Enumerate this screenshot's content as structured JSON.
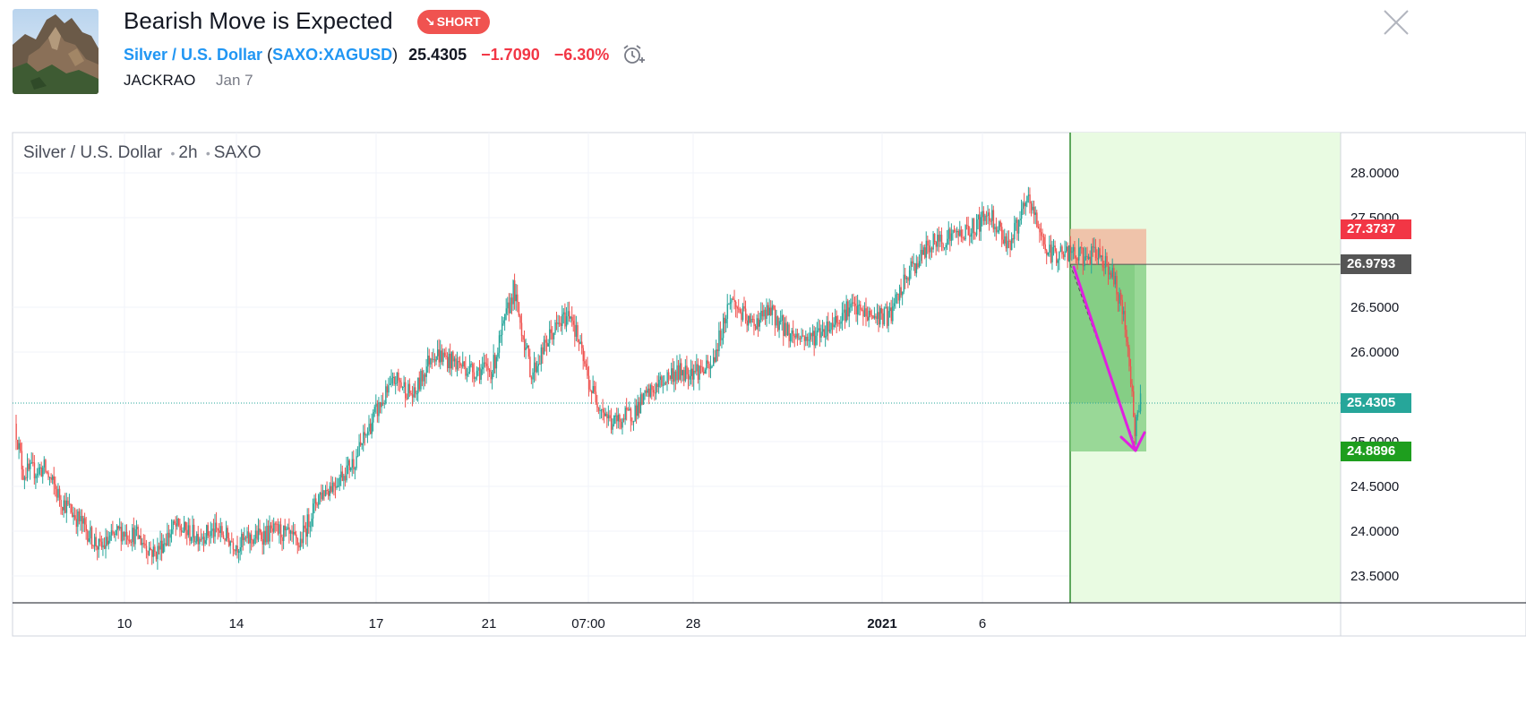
{
  "idea": {
    "title": "Bearish Move is Expected",
    "badge": "SHORT",
    "symbol_name": "Silver / U.S. Dollar",
    "symbol_code": "SAXO:XAGUSD",
    "price": "25.4305",
    "change": "−1.7090",
    "change_pct": "−6.30%",
    "author": "JACKRAO",
    "date": "Jan 7"
  },
  "colors": {
    "up": "#26a69a",
    "down": "#ef5350",
    "target_zone": "#7dcc7d",
    "stop_zone": "#f0b8a0",
    "right_panel": "#e9fbe2",
    "arrow": "#e020e0",
    "badge": "#f05350",
    "link": "#2196f3"
  },
  "chart_legend": {
    "symbol": "Silver / U.S. Dollar",
    "interval": "2h",
    "exchange": "SAXO"
  },
  "chart_data": {
    "type": "candlestick",
    "y_ticks": [
      "28.0000",
      "27.5000",
      "26.5000",
      "26.0000",
      "25.0000",
      "24.5000",
      "24.0000",
      "23.5000"
    ],
    "y_tick_values": [
      28.0,
      27.5,
      26.5,
      26.0,
      25.0,
      24.5,
      24.0,
      23.5
    ],
    "ylim": [
      23.2,
      28.45
    ],
    "x_ticks": [
      {
        "label": "10",
        "bold": false
      },
      {
        "label": "14",
        "bold": false
      },
      {
        "label": "17",
        "bold": false
      },
      {
        "label": "21",
        "bold": false
      },
      {
        "label": "07:00",
        "bold": false
      },
      {
        "label": "28",
        "bold": false
      },
      {
        "label": "2021",
        "bold": true
      },
      {
        "label": "6",
        "bold": false
      }
    ],
    "price_labels": [
      {
        "text": "27.3737",
        "value": 27.3737,
        "color": "#f23645"
      },
      {
        "text": "26.9793",
        "value": 26.9793,
        "color": "#555555"
      },
      {
        "text": "25.4305",
        "value": 25.4305,
        "color": "#26a69a"
      },
      {
        "text": "24.8896",
        "value": 24.8896,
        "color": "#1e9e1e"
      }
    ],
    "position": {
      "side": "short",
      "entry": 26.9793,
      "stop": 27.3737,
      "target": 24.8896
    },
    "current_price": 25.4305,
    "path": [
      {
        "v": 25.2
      },
      {
        "v": 24.65
      },
      {
        "v": 24.7
      },
      {
        "v": 24.35
      },
      {
        "v": 24.1
      },
      {
        "v": 23.8
      },
      {
        "v": 24.0
      },
      {
        "v": 23.95
      },
      {
        "v": 23.75
      },
      {
        "v": 24.05
      },
      {
        "v": 23.95
      },
      {
        "v": 24.0
      },
      {
        "v": 23.85
      },
      {
        "v": 23.95
      },
      {
        "v": 24.0
      },
      {
        "v": 23.85
      },
      {
        "v": 24.4
      },
      {
        "v": 24.55
      },
      {
        "v": 24.8
      },
      {
        "v": 25.3
      },
      {
        "v": 25.7
      },
      {
        "v": 25.5
      },
      {
        "v": 26.0
      },
      {
        "v": 25.9
      },
      {
        "v": 25.8
      },
      {
        "v": 25.8
      },
      {
        "v": 26.7
      },
      {
        "v": 25.75
      },
      {
        "v": 26.2
      },
      {
        "v": 26.45
      },
      {
        "v": 25.6
      },
      {
        "v": 25.2
      },
      {
        "v": 25.3
      },
      {
        "v": 25.55
      },
      {
        "v": 25.75
      },
      {
        "v": 25.8
      },
      {
        "v": 25.8
      },
      {
        "v": 26.6
      },
      {
        "v": 26.3
      },
      {
        "v": 26.45
      },
      {
        "v": 26.2
      },
      {
        "v": 26.15
      },
      {
        "v": 26.3
      },
      {
        "v": 26.5
      },
      {
        "v": 26.4
      },
      {
        "v": 26.4
      },
      {
        "v": 26.9
      },
      {
        "v": 27.2
      },
      {
        "v": 27.3
      },
      {
        "v": 27.35
      },
      {
        "v": 27.55
      },
      {
        "v": 27.2
      },
      {
        "v": 27.7
      },
      {
        "v": 27.1
      },
      {
        "v": 27.1
      },
      {
        "v": 27.05
      },
      {
        "v": 27.1
      },
      {
        "v": 26.9
      },
      {
        "v": 26.6
      },
      {
        "v": 26.1
      },
      {
        "v": 25.1
      },
      {
        "v": 25.4305
      }
    ],
    "candle_counts": [
      6,
      15,
      12,
      14,
      14,
      14,
      12,
      13,
      14,
      15,
      16,
      14,
      15,
      15,
      14,
      14,
      12,
      14,
      14,
      15,
      13,
      13,
      14,
      15,
      14,
      15,
      13,
      14,
      14,
      14,
      15,
      14,
      14,
      14,
      14,
      15,
      14,
      14,
      14,
      15,
      14,
      14,
      14,
      15,
      14,
      14,
      15,
      14,
      14,
      14,
      14,
      14,
      14,
      14,
      13,
      10,
      8,
      6,
      6,
      5,
      4
    ]
  }
}
